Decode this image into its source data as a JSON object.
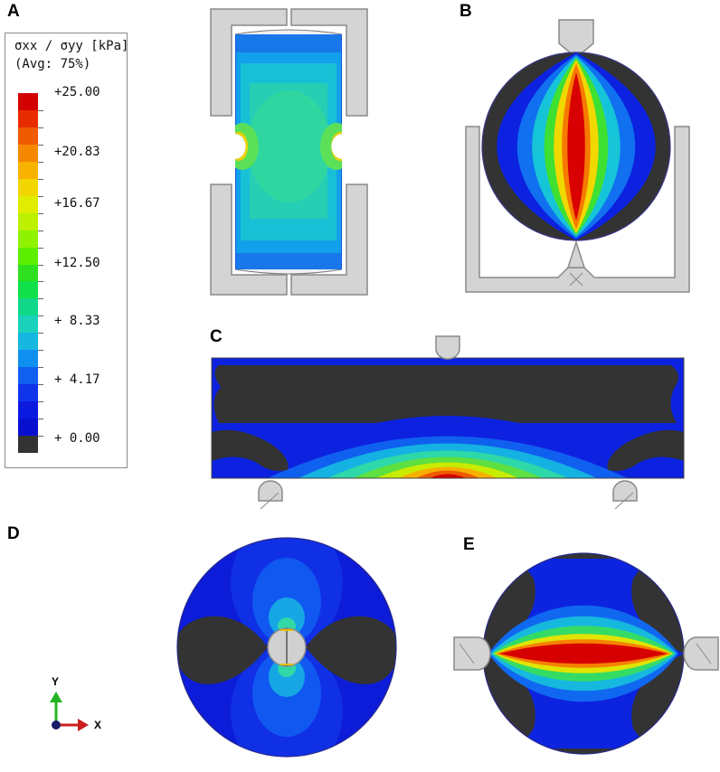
{
  "panels": {
    "a": "A",
    "b": "B",
    "c": "C",
    "d": "D",
    "e": "E"
  },
  "legend": {
    "title_line1": "σxx / σyy [kPa]",
    "title_line2": "(Avg: 75%)",
    "values": [
      "+25.00",
      "+20.83",
      "+16.67",
      "+12.50",
      "+ 8.33",
      "+ 4.17",
      "+ 0.00"
    ],
    "color_bands": [
      "#d20000",
      "#e82c00",
      "#f05a00",
      "#f68800",
      "#f8b200",
      "#f2d600",
      "#e0ec00",
      "#bcf000",
      "#8ef200",
      "#5cf000",
      "#2ee020",
      "#10e04a",
      "#10d888",
      "#1ad2bc",
      "#16b8e0",
      "#1090ee",
      "#1060f0",
      "#1034ea",
      "#0c1ae0",
      "#0810d0",
      "#333333"
    ],
    "min_color": "#333333",
    "max_color": "#d20000"
  },
  "triad": {
    "y_label": "Y",
    "x_label": "X",
    "y_color": "#22b422",
    "x_color": "#c81e1e"
  }
}
